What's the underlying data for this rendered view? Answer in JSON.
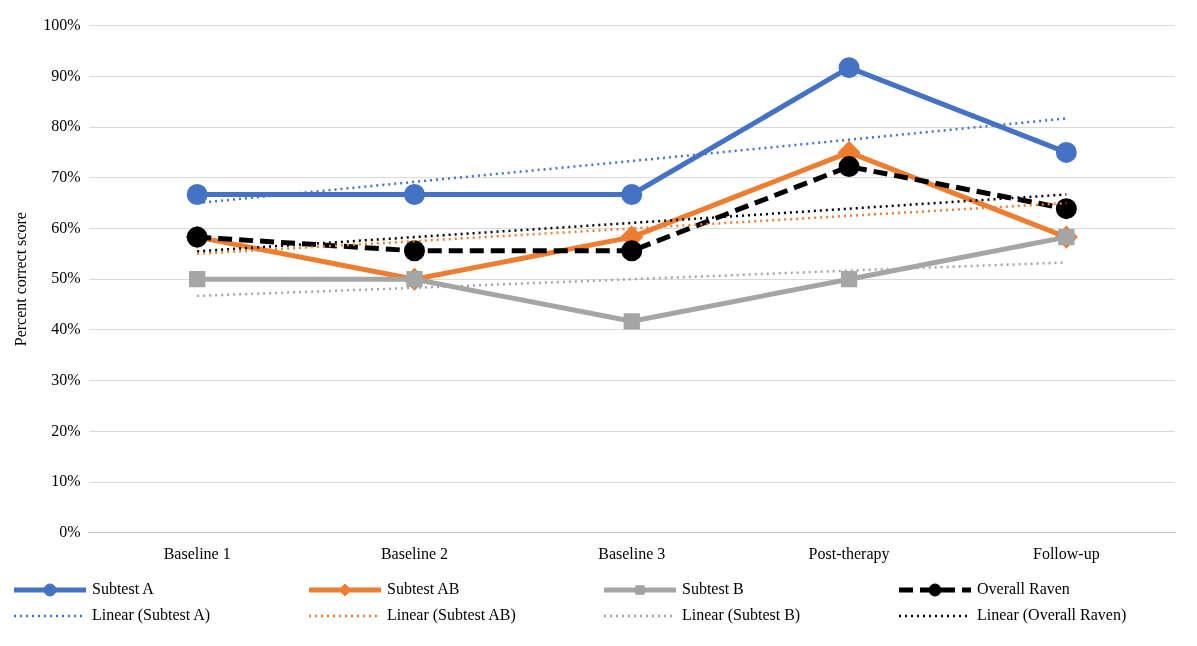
{
  "chart_data": {
    "type": "line",
    "ylabel": "Percent correct score",
    "categories": [
      "Baseline 1",
      "Baseline 2",
      "Baseline 3",
      "Post-therapy",
      "Follow-up"
    ],
    "series": [
      {
        "name": "Subtest A",
        "color": "#4472c4",
        "marker": "circle",
        "line_style": "solid",
        "values": [
          66.7,
          66.7,
          66.7,
          91.7,
          75
        ]
      },
      {
        "name": "Subtest AB",
        "color": "#ed7d31",
        "marker": "diamond",
        "line_style": "solid",
        "values": [
          58.3,
          50,
          58.3,
          75,
          58.3
        ]
      },
      {
        "name": "Subtest B",
        "color": "#a5a5a5",
        "marker": "square",
        "line_style": "solid",
        "values": [
          50,
          50,
          41.7,
          50,
          58.3
        ]
      },
      {
        "name": "Overall Raven",
        "color": "#000000",
        "marker": "circle",
        "line_style": "dashed",
        "values": [
          58.3,
          55.6,
          55.6,
          72.2,
          63.9
        ]
      },
      {
        "name": "Linear (Subtest A)",
        "color": "#4472c4",
        "marker": "none",
        "line_style": "dotted",
        "values": [
          65,
          69.2,
          73.3,
          77.5,
          81.7
        ]
      },
      {
        "name": "Linear (Subtest AB)",
        "color": "#ed7d31",
        "marker": "none",
        "line_style": "dotted",
        "values": [
          55,
          57.5,
          60,
          62.5,
          65
        ]
      },
      {
        "name": "Linear (Subtest B)",
        "color": "#a5a5a5",
        "marker": "none",
        "line_style": "dotted",
        "values": [
          46.7,
          48.3,
          50,
          51.7,
          53.3
        ]
      },
      {
        "name": "Linear (Overall Raven)",
        "color": "#000000",
        "marker": "none",
        "line_style": "dotted",
        "values": [
          55.5,
          58.3,
          61.1,
          63.9,
          66.7
        ]
      }
    ],
    "ylim": [
      0,
      100
    ],
    "yticks": [
      {
        "value": 0,
        "label": "0%"
      },
      {
        "value": 10,
        "label": "10%"
      },
      {
        "value": 20,
        "label": "20%"
      },
      {
        "value": 30,
        "label": "30%"
      },
      {
        "value": 40,
        "label": "40%"
      },
      {
        "value": 50,
        "label": "50%"
      },
      {
        "value": 60,
        "label": "60%"
      },
      {
        "value": 70,
        "label": "70%"
      },
      {
        "value": 80,
        "label": "80%"
      },
      {
        "value": 90,
        "label": "90%"
      },
      {
        "value": 100,
        "label": "100%"
      }
    ],
    "grid": "y",
    "legend": "bottom"
  }
}
